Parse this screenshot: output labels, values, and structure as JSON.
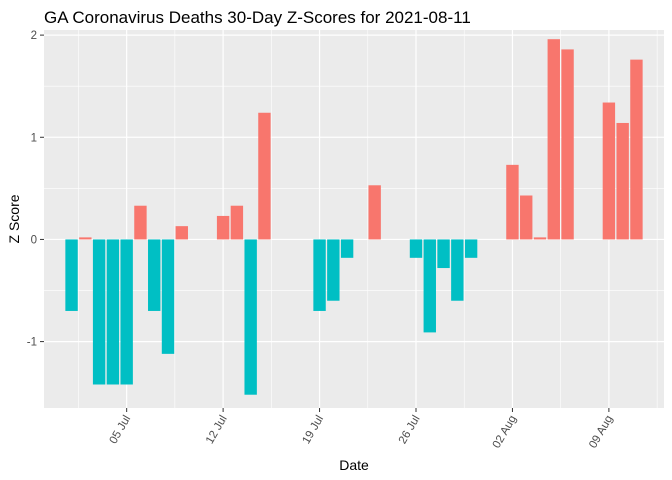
{
  "chart_data": {
    "type": "bar",
    "title": "GA Coronavirus Deaths 30-Day Z-Scores for 2021-08-11",
    "xlabel": "Date",
    "ylabel": "Z Score",
    "y_ticks": [
      -1,
      0,
      1,
      2
    ],
    "y_tick_labels": [
      "-1",
      "0",
      "1",
      "2"
    ],
    "x_tick_dates": [
      "2021-07-05",
      "2021-07-12",
      "2021-07-19",
      "2021-07-26",
      "2021-08-02",
      "2021-08-09"
    ],
    "x_tick_labels": [
      "05 Jul",
      "12 Jul",
      "19 Jul",
      "26 Jul",
      "02 Aug",
      "09 Aug"
    ],
    "xlim": [
      "2021-06-29",
      "2021-08-13"
    ],
    "ylim": [
      -1.65,
      2.05
    ],
    "grid": true,
    "legend": "none",
    "colors": {
      "positive": "#F8766D",
      "negative": "#00BFC4",
      "panel": "#EBEBEB",
      "grid": "#FFFFFF"
    },
    "series": [
      {
        "x": [
          "2021-07-01",
          "2021-07-02",
          "2021-07-03",
          "2021-07-04",
          "2021-07-05",
          "2021-07-06",
          "2021-07-07",
          "2021-07-08",
          "2021-07-09",
          "2021-07-10",
          "2021-07-11",
          "2021-07-12",
          "2021-07-13",
          "2021-07-14",
          "2021-07-15",
          "2021-07-16",
          "2021-07-17",
          "2021-07-18",
          "2021-07-19",
          "2021-07-20",
          "2021-07-21",
          "2021-07-22",
          "2021-07-23",
          "2021-07-24",
          "2021-07-25",
          "2021-07-26",
          "2021-07-27",
          "2021-07-28",
          "2021-07-29",
          "2021-07-30",
          "2021-07-31",
          "2021-08-01",
          "2021-08-02",
          "2021-08-03",
          "2021-08-04",
          "2021-08-05",
          "2021-08-06",
          "2021-08-07",
          "2021-08-08",
          "2021-08-09",
          "2021-08-10",
          "2021-08-11"
        ],
        "values": [
          -0.7,
          0.02,
          -1.42,
          -1.42,
          -1.42,
          0.33,
          -0.7,
          -1.12,
          0.13,
          0.0,
          0.0,
          0.23,
          0.33,
          -1.52,
          1.24,
          0.0,
          0.0,
          0.0,
          -0.7,
          -0.6,
          -0.18,
          0.0,
          0.53,
          0.0,
          0.0,
          -0.18,
          -0.91,
          -0.28,
          -0.6,
          -0.18,
          0.0,
          0.0,
          0.73,
          0.43,
          0.02,
          1.96,
          1.86,
          0.0,
          0.0,
          1.34,
          1.14,
          1.76
        ]
      }
    ]
  }
}
